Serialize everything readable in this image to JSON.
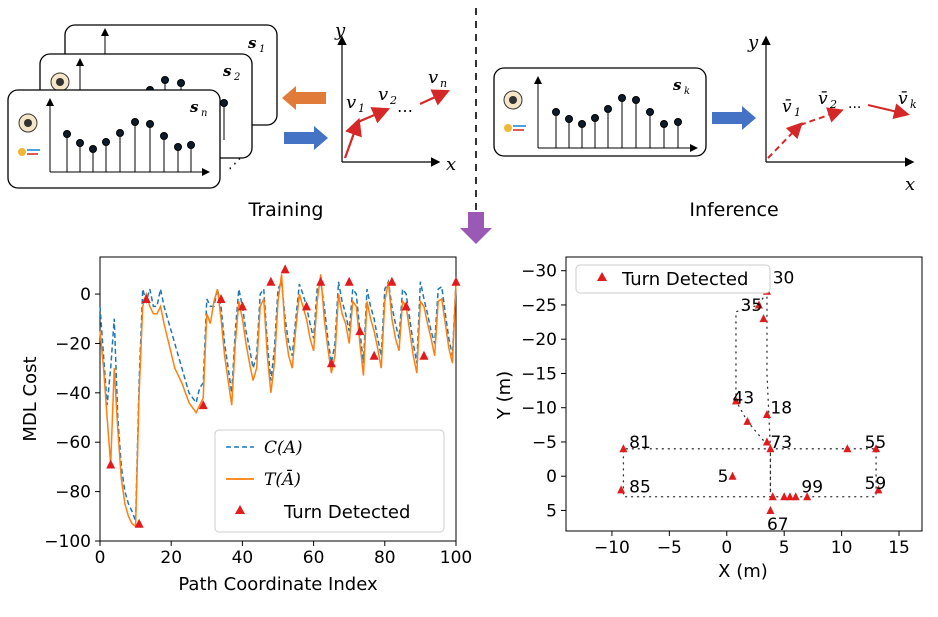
{
  "top": {
    "training_label": "Training",
    "inference_label": "Inference",
    "card_labels": [
      "s",
      "s",
      "s"
    ],
    "card_subs": [
      "1",
      "2",
      "n"
    ],
    "inference_card_label": "s",
    "inference_card_sub": "k",
    "train_axes": {
      "y": "y",
      "x": "x",
      "v1": "v",
      "v1_sub": "1",
      "v2": "v",
      "v2_sub": "2",
      "vn": "v",
      "vn_sub": "n",
      "dots": "…"
    },
    "infer_axes": {
      "y": "y",
      "x": "x",
      "v1": "v̄",
      "v1_sub": "1",
      "v2": "v̄",
      "v2_sub": "2",
      "vk": "v̄",
      "vk_sub": "k",
      "dots": "···"
    },
    "icons": [
      "compass-icon",
      "wifi-signal-icon",
      "right-arrow-icon",
      "left-arrow-icon",
      "down-arrow-icon"
    ],
    "colors": {
      "orange_arrow": "#e07b39",
      "blue_arrow": "#4472c4",
      "purple_arrow": "#9b59b6",
      "red_trajectory": "#d62728"
    }
  },
  "chart_data": [
    {
      "type": "line",
      "xlabel": "Path Coordinate Index",
      "ylabel": "MDL Cost",
      "xlim": [
        0,
        100
      ],
      "ylim": [
        -100,
        15
      ],
      "xticks": [
        0,
        20,
        40,
        60,
        80,
        100
      ],
      "yticks": [
        0,
        -20,
        -40,
        -60,
        -80,
        -100
      ],
      "legend_position": "lower-right",
      "series": [
        {
          "name": "C(A)",
          "style": "dashed",
          "color": "#1f77b4",
          "x": [
            0,
            1,
            2,
            3,
            4,
            5,
            6,
            7,
            8,
            9,
            10,
            11,
            12,
            13,
            14,
            15,
            16,
            17,
            18,
            19,
            20,
            21,
            22,
            23,
            24,
            25,
            26,
            27,
            28,
            29,
            30,
            31,
            32,
            33,
            34,
            35,
            36,
            37,
            38,
            39,
            40,
            41,
            42,
            43,
            44,
            45,
            46,
            47,
            48,
            49,
            50,
            51,
            52,
            53,
            54,
            55,
            56,
            57,
            58,
            59,
            60,
            61,
            62,
            63,
            64,
            65,
            66,
            67,
            68,
            69,
            70,
            71,
            72,
            73,
            74,
            75,
            76,
            77,
            78,
            79,
            80,
            81,
            82,
            83,
            84,
            85,
            86,
            87,
            88,
            89,
            90,
            91,
            92,
            93,
            94,
            95,
            96,
            97,
            98,
            99,
            100
          ],
          "values": [
            -5,
            -25,
            -45,
            -30,
            -10,
            -50,
            -70,
            -80,
            -85,
            -88,
            -92,
            -35,
            2,
            -3,
            2,
            -5,
            -5,
            2,
            -5,
            -10,
            -15,
            -20,
            -25,
            -30,
            -35,
            -40,
            -42,
            -44,
            -38,
            -36,
            -2,
            -5,
            -5,
            2,
            -5,
            -20,
            -30,
            -40,
            -15,
            2,
            -5,
            -15,
            -22,
            -30,
            -25,
            0,
            2,
            -20,
            -35,
            -22,
            2,
            5,
            -10,
            -20,
            -25,
            -10,
            4,
            0,
            -5,
            -12,
            -18,
            2,
            5,
            -5,
            -18,
            -28,
            -20,
            5,
            -3,
            -8,
            -15,
            2,
            0,
            -15,
            -28,
            2,
            -5,
            -10,
            -18,
            -25,
            2,
            5,
            -5,
            -12,
            -18,
            2,
            0,
            -10,
            -20,
            -28,
            5,
            -2,
            -8,
            -15,
            -20,
            2,
            3,
            -8,
            -18,
            -25,
            5
          ]
        },
        {
          "name": "T(Ā)",
          "style": "solid",
          "color": "#ff7f0e",
          "x": [
            0,
            1,
            2,
            3,
            4,
            5,
            6,
            7,
            8,
            9,
            10,
            11,
            12,
            13,
            14,
            15,
            16,
            17,
            18,
            19,
            20,
            21,
            22,
            23,
            24,
            25,
            26,
            27,
            28,
            29,
            30,
            31,
            32,
            33,
            34,
            35,
            36,
            37,
            38,
            39,
            40,
            41,
            42,
            43,
            44,
            45,
            46,
            47,
            48,
            49,
            50,
            51,
            52,
            53,
            54,
            55,
            56,
            57,
            58,
            59,
            60,
            61,
            62,
            63,
            64,
            65,
            66,
            67,
            68,
            69,
            70,
            71,
            72,
            73,
            74,
            75,
            76,
            77,
            78,
            79,
            80,
            81,
            82,
            83,
            84,
            85,
            86,
            87,
            88,
            89,
            90,
            91,
            92,
            93,
            94,
            95,
            96,
            97,
            98,
            99,
            100
          ],
          "values": [
            -15,
            -30,
            -50,
            -69,
            -30,
            -55,
            -75,
            -85,
            -90,
            -93,
            -94,
            -40,
            -5,
            0,
            -5,
            -8,
            -8,
            -5,
            -12,
            -18,
            -24,
            -30,
            -33,
            -36,
            -40,
            -44,
            -46,
            -48,
            -45,
            -42,
            -8,
            -12,
            -3,
            2,
            -10,
            -25,
            -35,
            -45,
            -20,
            -3,
            -10,
            -20,
            -28,
            -35,
            -30,
            -5,
            -2,
            -25,
            -40,
            -28,
            -3,
            8,
            -15,
            -25,
            -30,
            -14,
            0,
            -5,
            -10,
            -18,
            -23,
            -3,
            8,
            -10,
            -22,
            -32,
            -25,
            0,
            -8,
            -12,
            -20,
            -3,
            -5,
            -20,
            -33,
            -3,
            -10,
            -15,
            -22,
            -30,
            -3,
            5,
            -10,
            -18,
            -23,
            -3,
            -5,
            -15,
            -25,
            -32,
            -3,
            -5,
            -12,
            -18,
            -25,
            -3,
            -2,
            -12,
            -22,
            -28,
            5
          ]
        },
        {
          "name": "Turn Detected",
          "style": "marker",
          "color": "#e31a1c",
          "x": [
            3,
            11,
            13,
            29,
            34,
            40,
            48,
            52,
            58,
            62,
            65,
            70,
            73,
            77,
            82,
            86,
            91,
            100
          ],
          "values": [
            -69,
            -93,
            -2,
            -45,
            -2,
            -5,
            5,
            10,
            -5,
            5,
            -28,
            5,
            -15,
            -25,
            5,
            -5,
            -25,
            5
          ]
        }
      ]
    },
    {
      "type": "scatter",
      "xlabel": "X (m)",
      "ylabel": "Y (m)",
      "xlim": [
        -14,
        17
      ],
      "ylim": [
        8,
        -32
      ],
      "xticks": [
        -10,
        -5,
        0,
        5,
        10,
        15
      ],
      "yticks": [
        -30,
        -25,
        -20,
        -15,
        -10,
        -5,
        0,
        5
      ],
      "legend_position": "upper-left",
      "series": [
        {
          "name": "Turn Detected",
          "color": "#e31a1c",
          "x": [
            3.5,
            2.8,
            3.2,
            0.8,
            3.5,
            1.8,
            3.5,
            3.8,
            13,
            10.5,
            13.2,
            -9.0,
            -9.2,
            0.5,
            3.8,
            5.5,
            7.0,
            4.0,
            5.0,
            6.0
          ],
          "values": [
            -27,
            -25,
            -23,
            -11,
            -9,
            -8,
            -5,
            -4,
            -4,
            -4,
            2,
            -4,
            2,
            0,
            5,
            3,
            3,
            3,
            3,
            3
          ]
        }
      ],
      "annotations": [
        {
          "text": "30",
          "x": 4.0,
          "y": -29
        },
        {
          "text": "35",
          "x": 1.2,
          "y": -25
        },
        {
          "text": "43",
          "x": 0.5,
          "y": -11.5
        },
        {
          "text": "18",
          "x": 3.8,
          "y": -10
        },
        {
          "text": "73",
          "x": 3.8,
          "y": -5
        },
        {
          "text": "55",
          "x": 12.0,
          "y": -5
        },
        {
          "text": "81",
          "x": -8.5,
          "y": -5
        },
        {
          "text": "5",
          "x": -0.8,
          "y": 0
        },
        {
          "text": "85",
          "x": -8.5,
          "y": 1.5
        },
        {
          "text": "99",
          "x": 6.5,
          "y": 1.5
        },
        {
          "text": "59",
          "x": 12.0,
          "y": 1
        },
        {
          "text": "67",
          "x": 3.5,
          "y": 7
        }
      ],
      "path": [
        [
          3.5,
          -27
        ],
        [
          3.5,
          -15
        ],
        [
          3.8,
          -4
        ],
        [
          3.8,
          2
        ],
        [
          4.0,
          3
        ],
        [
          7,
          3
        ],
        [
          13,
          3
        ],
        [
          13,
          -4
        ],
        [
          3.8,
          -4
        ],
        [
          -9,
          -4
        ],
        [
          -9,
          2
        ],
        [
          -9,
          3
        ],
        [
          3.8,
          3
        ],
        [
          3.8,
          -4
        ],
        [
          1.8,
          -8
        ],
        [
          0.8,
          -11
        ],
        [
          0.8,
          -24
        ],
        [
          2.8,
          -25
        ],
        [
          3.5,
          -27
        ]
      ]
    }
  ]
}
